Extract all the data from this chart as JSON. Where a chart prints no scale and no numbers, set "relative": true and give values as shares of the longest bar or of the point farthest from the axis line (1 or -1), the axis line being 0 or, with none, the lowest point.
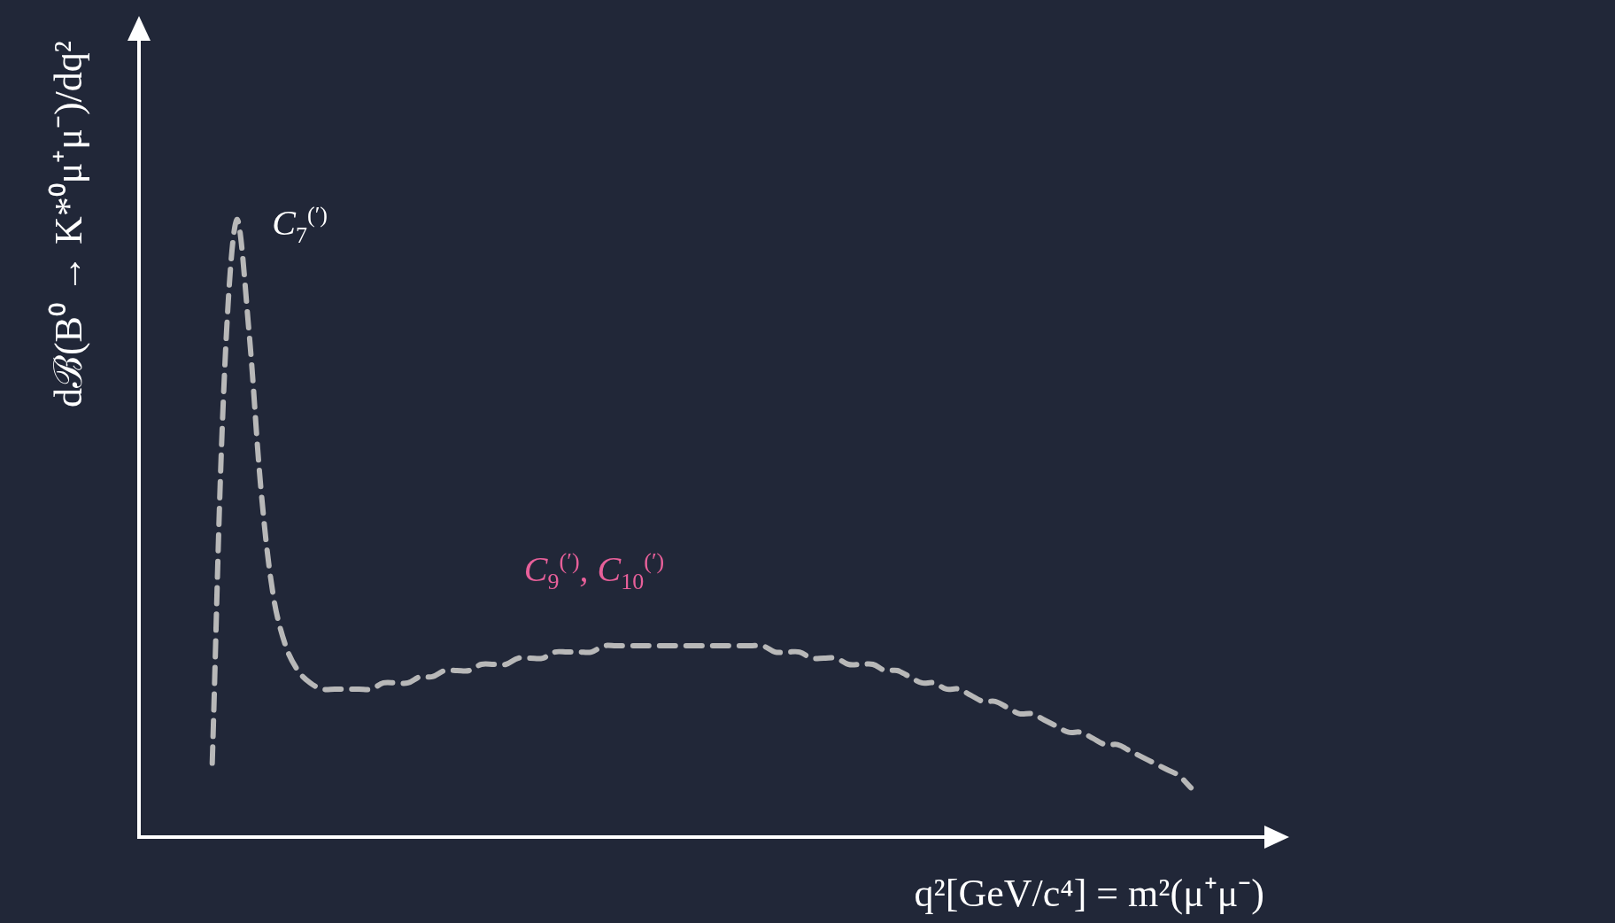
{
  "chart_data": {
    "type": "line",
    "relative": true,
    "line_style": "dashed",
    "tick_labels": false,
    "color": "#b8b8b8",
    "xlabel": "q²[GeV/c⁴] = m²(μ⁺μ⁻)",
    "ylabel": "dℬ(B⁰ → K*⁰μ⁺μ⁻)/dq²",
    "annotations": [
      "C$_{7}$$^{(′)}$",
      "C$_{9}$$^{(′)}$, C$_{10}$$^{(′)}$"
    ],
    "categories": [
      null,
      null,
      null,
      null,
      null,
      null,
      null,
      null,
      null,
      null,
      null,
      null,
      null,
      null,
      null,
      null,
      null,
      null,
      null,
      null,
      null,
      null,
      null,
      null,
      null,
      null,
      null,
      null,
      null,
      null,
      null,
      null,
      null,
      null,
      null,
      null,
      null,
      null,
      null,
      null,
      null,
      null,
      null,
      null,
      null,
      null,
      null,
      null,
      null,
      null,
      null,
      null,
      null,
      null,
      null,
      null,
      null,
      null,
      null,
      null,
      null,
      null,
      null,
      null,
      null,
      null,
      null,
      null,
      null,
      null,
      null,
      null,
      null,
      null,
      null,
      null,
      null,
      null,
      null,
      null,
      null,
      null,
      null,
      null,
      null,
      null,
      null,
      null,
      null,
      null,
      null,
      null,
      null
    ],
    "values": [
      null,
      null,
      null,
      null,
      null,
      null,
      0.12,
      0.75,
      1.0,
      0.82,
      0.56,
      0.39,
      0.31,
      0.27,
      0.25,
      0.24,
      0.24,
      0.24,
      0.24,
      0.24,
      0.25,
      0.25,
      0.25,
      0.26,
      0.26,
      0.27,
      0.27,
      0.27,
      0.28,
      0.28,
      0.28,
      0.29,
      0.29,
      0.29,
      0.3,
      0.3,
      0.3,
      0.3,
      0.31,
      0.31,
      0.31,
      0.31,
      0.31,
      0.31,
      0.31,
      0.31,
      0.31,
      0.31,
      0.31,
      0.31,
      0.31,
      0.31,
      0.3,
      0.3,
      0.3,
      0.29,
      0.29,
      0.29,
      0.28,
      0.28,
      0.28,
      0.27,
      0.27,
      0.26,
      0.25,
      0.25,
      0.24,
      0.24,
      0.23,
      0.22,
      0.22,
      0.21,
      0.2,
      0.2,
      0.19,
      0.18,
      0.17,
      0.17,
      0.16,
      0.15,
      0.15,
      0.14,
      0.13,
      0.12,
      0.11,
      0.1,
      0.08,
      null,
      null,
      null,
      null,
      null,
      null
    ]
  }
}
